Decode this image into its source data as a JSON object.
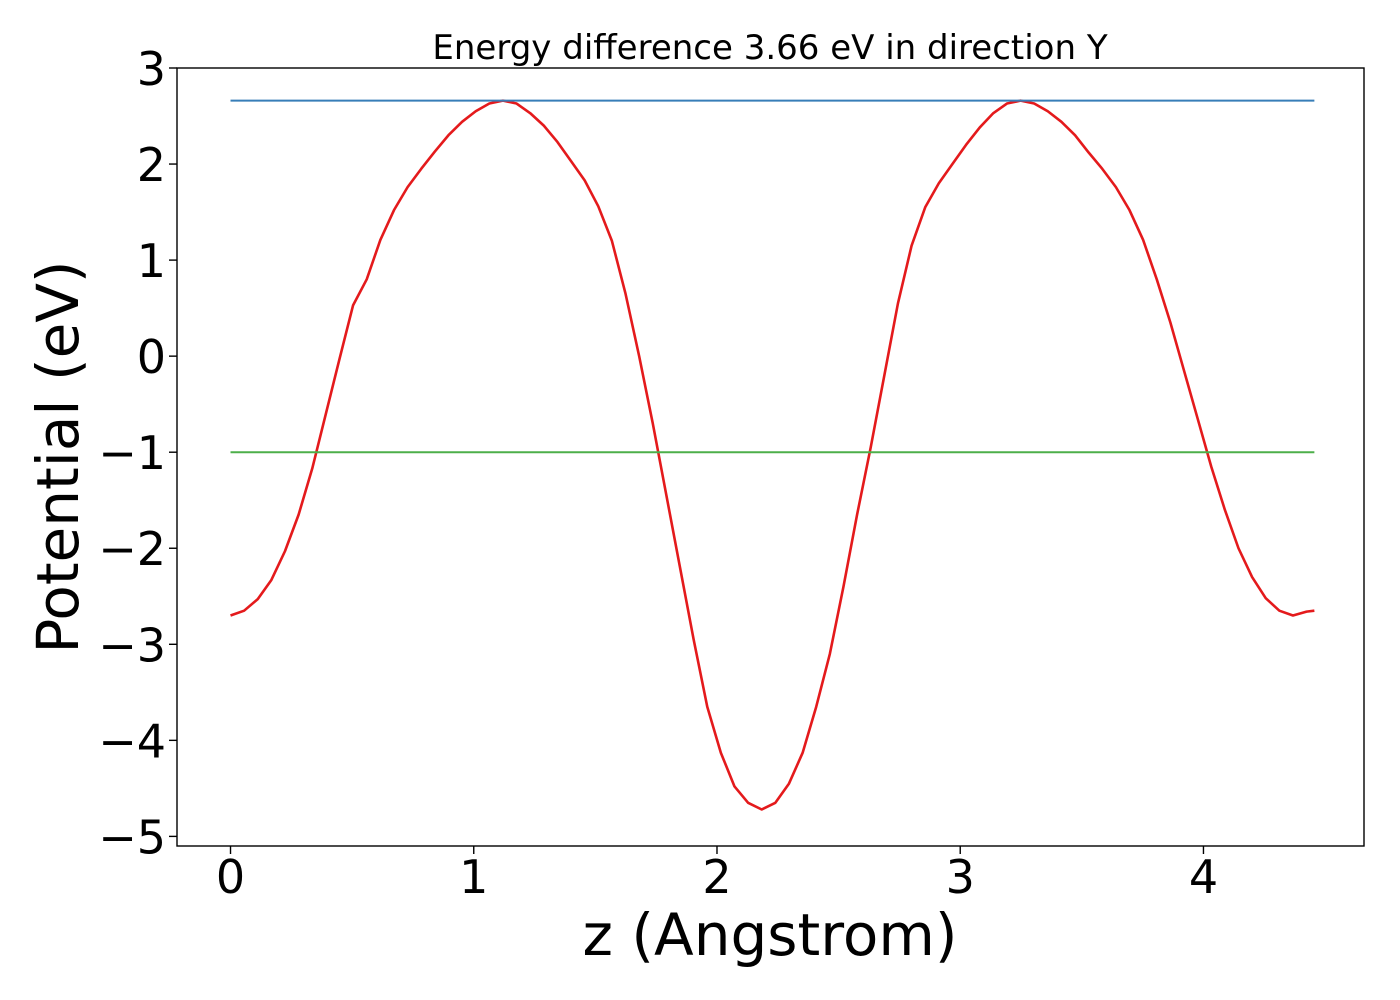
{
  "chart_data": {
    "type": "line",
    "title": "Energy difference 3.66 eV in direction Y",
    "xlabel": "z (Angstrom)",
    "ylabel": "Potential (eV)",
    "xlim": [
      -0.22,
      4.66
    ],
    "ylim": [
      -5.1,
      3.0
    ],
    "xticks": [
      0,
      1,
      2,
      3,
      4
    ],
    "xtick_labels": [
      "0",
      "1",
      "2",
      "3",
      "4"
    ],
    "yticks": [
      -5,
      -4,
      -3,
      -2,
      -1,
      0,
      1,
      2,
      3
    ],
    "ytick_labels": [
      "−5",
      "−4",
      "−3",
      "−2",
      "−1",
      "0",
      "1",
      "2",
      "3"
    ],
    "grid": false,
    "series": [
      {
        "color": "#e41a1c",
        "x": [
          0,
          0.056,
          0.112,
          0.168,
          0.224,
          0.28,
          0.336,
          0.392,
          0.448,
          0.504,
          0.56,
          0.616,
          0.672,
          0.728,
          0.784,
          0.84,
          0.896,
          0.952,
          1.008,
          1.064,
          1.12,
          1.176,
          1.232,
          1.288,
          1.344,
          1.4,
          1.456,
          1.512,
          1.568,
          1.624,
          1.68,
          1.736,
          1.792,
          1.848,
          1.904,
          1.96,
          2.016,
          2.072,
          2.128,
          2.184,
          2.24,
          2.296,
          2.352,
          2.408,
          2.464,
          2.52,
          2.576,
          2.632,
          2.688,
          2.744,
          2.8,
          2.856,
          2.912,
          2.968,
          3.024,
          3.08,
          3.136,
          3.192,
          3.248,
          3.304,
          3.36,
          3.416,
          3.472,
          3.528,
          3.584,
          3.64,
          3.696,
          3.752,
          3.808,
          3.864,
          3.92,
          3.976,
          4.032,
          4.088,
          4.144,
          4.2,
          4.256,
          4.312,
          4.368,
          4.424,
          4.456
        ],
        "y": [
          -2.7,
          -2.65,
          -2.53,
          -2.33,
          -2.03,
          -1.65,
          -1.17,
          -0.6,
          -0.03,
          0.53,
          0.8,
          1.21,
          1.52,
          1.76,
          1.95,
          2.13,
          2.3,
          2.44,
          2.55,
          2.63,
          2.66,
          2.63,
          2.53,
          2.4,
          2.23,
          2.03,
          1.83,
          1.56,
          1.2,
          0.65,
          0.0,
          -0.7,
          -1.45,
          -2.2,
          -2.95,
          -3.65,
          -4.13,
          -4.48,
          -4.65,
          -4.72,
          -4.65,
          -4.45,
          -4.13,
          -3.65,
          -3.1,
          -2.4,
          -1.65,
          -0.95,
          -0.2,
          0.55,
          1.15,
          1.55,
          1.8,
          2.0,
          2.2,
          2.38,
          2.53,
          2.63,
          2.66,
          2.63,
          2.55,
          2.44,
          2.3,
          2.12,
          1.95,
          1.76,
          1.52,
          1.21,
          0.8,
          0.35,
          -0.15,
          -0.65,
          -1.15,
          -1.6,
          -2.0,
          -2.3,
          -2.52,
          -2.65,
          -2.7,
          -2.66,
          -2.65
        ]
      },
      {
        "color": "#377eb8",
        "x": [
          0,
          4.456
        ],
        "y": [
          2.66,
          2.66
        ]
      },
      {
        "color": "#4daf4a",
        "x": [
          0,
          4.456
        ],
        "y": [
          -1.0,
          -1.0
        ]
      }
    ]
  }
}
